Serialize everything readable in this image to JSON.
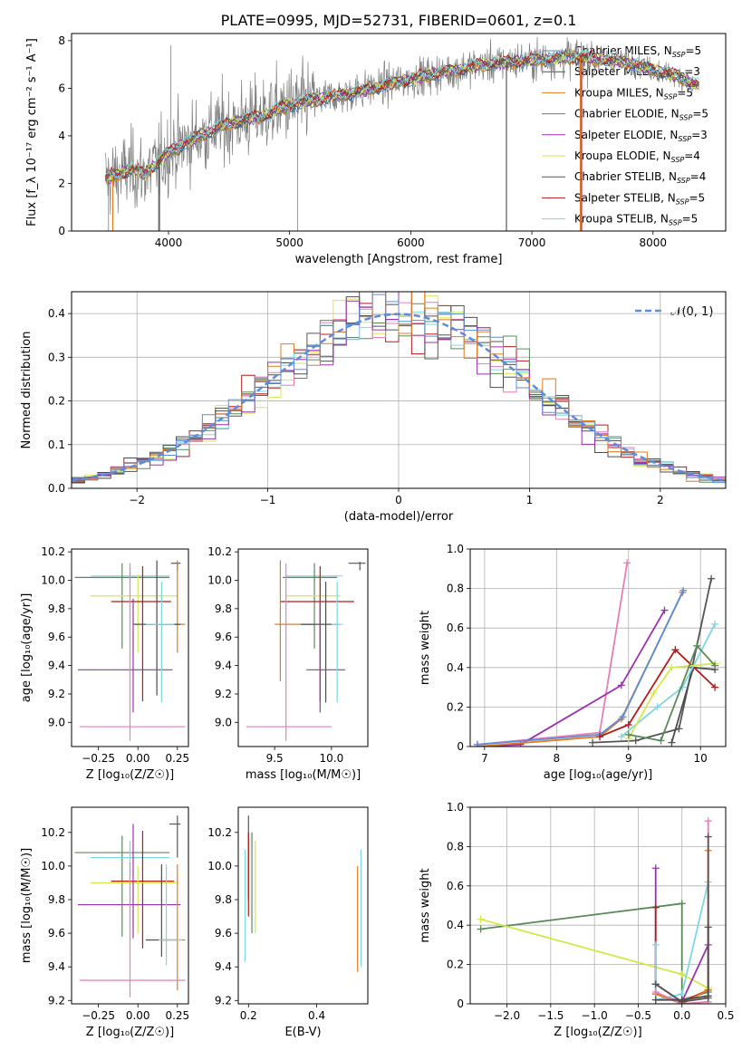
{
  "figure": {
    "title": "PLATE=0995, MJD=52731, FIBERID=0601, z=0.1"
  },
  "models": [
    {
      "name": "Chabrier MILES",
      "nssp": "5",
      "color": "#5b8dd9"
    },
    {
      "name": "Salpeter MILES",
      "nssp": "3",
      "color": "#4d4d4d"
    },
    {
      "name": "Kroupa MILES",
      "nssp": "5",
      "color": "#e07b20"
    },
    {
      "name": "Chabrier ELODIE",
      "nssp": "5",
      "color": "#5a8a5a"
    },
    {
      "name": "Salpeter ELODIE",
      "nssp": "3",
      "color": "#9b30b0"
    },
    {
      "name": "Kroupa ELODIE",
      "nssp": "4",
      "color": "#d4e84a"
    },
    {
      "name": "Chabrier STELIB",
      "nssp": "4",
      "color": "#555555"
    },
    {
      "name": "Salpeter STELIB",
      "nssp": "5",
      "color": "#b31b1b"
    },
    {
      "name": "Kroupa STELIB",
      "nssp": "5",
      "color": "#7fd6e0"
    }
  ],
  "extra_color": "#e67fb4",
  "chart_data": [
    {
      "id": "spectrum",
      "type": "line",
      "xlabel": "wavelength [Angstrom, rest frame]",
      "ylabel": "Flux [f_λ 10⁻¹⁷ erg cm⁻² s⁻¹ A⁻¹]",
      "xlim": [
        3200,
        8600
      ],
      "ylim": [
        0,
        8.3
      ],
      "xticks": [
        4000,
        5000,
        6000,
        7000,
        8000
      ],
      "yticks": [
        0,
        2,
        4,
        6,
        8
      ],
      "continuum": [
        [
          3480,
          2.2
        ],
        [
          3600,
          2.4
        ],
        [
          3700,
          2.6
        ],
        [
          3800,
          2.4
        ],
        [
          3900,
          2.8
        ],
        [
          4000,
          3.3
        ],
        [
          4100,
          3.6
        ],
        [
          4300,
          4.1
        ],
        [
          4500,
          4.5
        ],
        [
          4800,
          4.9
        ],
        [
          5000,
          5.3
        ],
        [
          5300,
          5.6
        ],
        [
          5600,
          5.9
        ],
        [
          6000,
          6.4
        ],
        [
          6300,
          6.7
        ],
        [
          6600,
          7.0
        ],
        [
          7000,
          7.2
        ],
        [
          7400,
          7.3
        ],
        [
          7800,
          7.1
        ],
        [
          8200,
          6.5
        ],
        [
          8380,
          6.1
        ]
      ],
      "data_sigma": 0.45,
      "spikes": [
        [
          3505,
          0
        ],
        [
          3930,
          0
        ],
        [
          5065,
          0
        ],
        [
          6790,
          0
        ],
        [
          7400,
          0
        ],
        [
          4020,
          7.8
        ]
      ]
    },
    {
      "id": "residuals",
      "type": "histogram",
      "xlabel": "(data-model)/error",
      "ylabel": "Normed distribution",
      "xlim": [
        -2.5,
        2.5
      ],
      "ylim": [
        0,
        0.45
      ],
      "xticks": [
        -2,
        -1,
        0,
        1,
        2
      ],
      "yticks": [
        0,
        0.1,
        0.2,
        0.3,
        0.4
      ],
      "bin_width": 0.1,
      "reference": {
        "name": "N(0,1)",
        "label": "𝒩(0, 1)",
        "color": "#5b8dd9"
      }
    },
    {
      "id": "age_vs_Z",
      "type": "scatter",
      "xlabel": "Z [log₁₀(Z/Z☉)]",
      "ylabel": "age  [log₁₀(age/yr)]",
      "xlim": [
        -0.42,
        0.32
      ],
      "ylim": [
        8.83,
        10.22
      ],
      "xticks": [
        -0.25,
        0.0,
        0.25
      ],
      "xticklabels": [
        "−0.25",
        "0.00",
        "0.25"
      ],
      "yticks": [
        9.0,
        9.2,
        9.4,
        9.6,
        9.8,
        10.0,
        10.2
      ],
      "points": [
        {
          "x": 0.25,
          "y": 10.12,
          "xerr": [
            0.04,
            0.02
          ],
          "yerr": [
            0.05,
            0.01
          ],
          "c": 6
        },
        {
          "x": -0.05,
          "y": 10.03,
          "xerr": [
            0.25,
            0.25
          ],
          "yerr": [
            0.05,
            0.05
          ],
          "c": 8
        },
        {
          "x": -0.1,
          "y": 10.02,
          "xerr": [
            0.3,
            0.3
          ],
          "yerr": [
            0.5,
            0.1
          ],
          "c": 3
        },
        {
          "x": 0.0,
          "y": 9.89,
          "xerr": [
            0.3,
            0.25
          ],
          "yerr": [
            0.4,
            0.15
          ],
          "c": 5
        },
        {
          "x": 0.03,
          "y": 9.85,
          "xerr": [
            0.2,
            0.18
          ],
          "yerr": [
            0.7,
            0.25
          ],
          "c": 7
        },
        {
          "x": 0.25,
          "y": 9.69,
          "xerr": [
            0.2,
            0.05
          ],
          "yerr": [
            0.2,
            0.45
          ],
          "c": 2
        },
        {
          "x": 0.12,
          "y": 9.69,
          "xerr": [
            0.15,
            0.15
          ],
          "yerr": [
            0.5,
            0.45
          ],
          "c": 1
        },
        {
          "x": -0.03,
          "y": 9.37,
          "xerr": [
            0.35,
            0.25
          ],
          "yerr": [
            0.3,
            0.5
          ],
          "c": 4
        },
        {
          "x": 0.15,
          "y": 9.69,
          "xerr": [
            0.1,
            0.08
          ],
          "yerr": [
            0.55,
            0.3
          ],
          "c": 8
        },
        {
          "x": -0.05,
          "y": 8.97,
          "xerr": [
            0.32,
            0.35
          ],
          "yerr": [
            0.1,
            1.15
          ],
          "c": 9
        }
      ]
    },
    {
      "id": "age_vs_mass",
      "type": "scatter",
      "xlabel": "mass [log₁₀(M/M☉)]",
      "ylabel": "",
      "xlim": [
        9.18,
        10.32
      ],
      "ylim": [
        8.83,
        10.22
      ],
      "xticks": [
        9.5,
        10.0
      ],
      "xticklabels": [
        "9.5",
        "10.0"
      ],
      "yticks": [
        9.0,
        9.2,
        9.4,
        9.6,
        9.8,
        10.0,
        10.2
      ],
      "points": [
        {
          "x": 10.25,
          "y": 10.12,
          "xerr": [
            0.1,
            0.05
          ],
          "yerr": [
            0.05,
            0.01
          ],
          "c": 6
        },
        {
          "x": 9.85,
          "y": 10.03,
          "xerr": [
            0.25,
            0.25
          ],
          "yerr": [
            0.05,
            0.05
          ],
          "c": 8
        },
        {
          "x": 9.85,
          "y": 10.02,
          "xerr": [
            0.28,
            0.2
          ],
          "yerr": [
            0.5,
            0.1
          ],
          "c": 3
        },
        {
          "x": 9.9,
          "y": 9.89,
          "xerr": [
            0.3,
            0.18
          ],
          "yerr": [
            0.4,
            0.15
          ],
          "c": 5
        },
        {
          "x": 9.9,
          "y": 9.85,
          "xerr": [
            0.35,
            0.3
          ],
          "yerr": [
            0.7,
            0.25
          ],
          "c": 7
        },
        {
          "x": 9.55,
          "y": 9.69,
          "xerr": [
            0.05,
            0.3
          ],
          "yerr": [
            0.4,
            0.45
          ],
          "c": 2
        },
        {
          "x": 9.95,
          "y": 9.69,
          "xerr": [
            0.22,
            0.12
          ],
          "yerr": [
            0.55,
            0.3
          ],
          "c": 1
        },
        {
          "x": 9.9,
          "y": 9.37,
          "xerr": [
            0.12,
            0.22
          ],
          "yerr": [
            0.3,
            0.5
          ],
          "c": 4
        },
        {
          "x": 10.05,
          "y": 9.69,
          "xerr": [
            0.05,
            0.05
          ],
          "yerr": [
            0.55,
            0.3
          ],
          "c": 8
        },
        {
          "x": 9.6,
          "y": 8.97,
          "xerr": [
            0.35,
            0.4
          ],
          "yerr": [
            0.1,
            1.15
          ],
          "c": 9
        }
      ]
    },
    {
      "id": "weight_vs_age",
      "type": "line",
      "xlabel": "age  [log₁₀(age/yr)]",
      "ylabel": "mass weight",
      "xlim": [
        6.8,
        10.35
      ],
      "ylim": [
        0,
        1.0
      ],
      "xticks": [
        7,
        8,
        9,
        10
      ],
      "yticks": [
        0.0,
        0.2,
        0.4,
        0.6,
        0.8,
        1.0
      ],
      "series": [
        {
          "c": 9,
          "x": [
            6.9,
            8.6,
            8.98
          ],
          "y": [
            0.01,
            0.07,
            0.93
          ]
        },
        {
          "c": 4,
          "x": [
            6.9,
            7.5,
            8.9,
            9.5
          ],
          "y": [
            0.0,
            0.01,
            0.31,
            0.69
          ]
        },
        {
          "c": 2,
          "x": [
            6.9,
            8.6,
            8.9,
            9.75
          ],
          "y": [
            0.0,
            0.05,
            0.14,
            0.78
          ]
        },
        {
          "c": 0,
          "x": [
            6.9,
            8.6,
            8.92,
            9.76
          ],
          "y": [
            0.01,
            0.06,
            0.15,
            0.79
          ]
        },
        {
          "c": 6,
          "x": [
            8.5,
            9.1,
            9.7,
            10.15
          ],
          "y": [
            0.02,
            0.03,
            0.09,
            0.85
          ]
        },
        {
          "c": 1,
          "x": [
            9.6,
            9.9,
            10.2
          ],
          "y": [
            0.02,
            0.4,
            0.39
          ]
        },
        {
          "c": 7,
          "x": [
            8.6,
            9.0,
            9.65,
            10.2
          ],
          "y": [
            0.05,
            0.11,
            0.49,
            0.3
          ]
        },
        {
          "c": 8,
          "x": [
            8.9,
            9.4,
            9.75,
            10.2
          ],
          "y": [
            0.05,
            0.2,
            0.3,
            0.62
          ]
        },
        {
          "c": 5,
          "x": [
            9.0,
            9.35,
            9.6,
            10.2
          ],
          "y": [
            0.04,
            0.27,
            0.4,
            0.42
          ]
        },
        {
          "c": 3,
          "x": [
            9.0,
            9.45,
            9.95,
            10.2
          ],
          "y": [
            0.06,
            0.03,
            0.51,
            0.41
          ]
        }
      ]
    },
    {
      "id": "mass_vs_Z",
      "type": "scatter",
      "xlabel": "Z [log₁₀(Z/Z☉)]",
      "ylabel": "mass [log₁₀(M/M☉)]",
      "xlim": [
        -0.42,
        0.32
      ],
      "ylim": [
        9.18,
        10.35
      ],
      "xticks": [
        -0.25,
        0.0,
        0.25
      ],
      "xticklabels": [
        "−0.25",
        "0.00",
        "0.25"
      ],
      "yticks": [
        9.2,
        9.4,
        9.6,
        9.8,
        10.0,
        10.2
      ],
      "points": [
        {
          "x": 0.25,
          "y": 10.25,
          "xerr": [
            0.05,
            0.02
          ],
          "yerr": [
            0.2,
            0.05
          ],
          "c": 6
        },
        {
          "x": -0.1,
          "y": 10.08,
          "xerr": [
            0.3,
            0.3
          ],
          "yerr": [
            0.5,
            0.1
          ],
          "c": 3
        },
        {
          "x": -0.05,
          "y": 10.05,
          "xerr": [
            0.25,
            0.25
          ],
          "yerr": [
            0.1,
            0.1
          ],
          "c": 8
        },
        {
          "x": 0.03,
          "y": 9.91,
          "xerr": [
            0.2,
            0.2
          ],
          "yerr": [
            0.4,
            0.3
          ],
          "c": 7
        },
        {
          "x": 0.0,
          "y": 9.9,
          "xerr": [
            0.3,
            0.25
          ],
          "yerr": [
            0.3,
            0.1
          ],
          "c": 5
        },
        {
          "x": -0.03,
          "y": 9.77,
          "xerr": [
            0.35,
            0.3
          ],
          "yerr": [
            0.2,
            0.48
          ],
          "c": 4
        },
        {
          "x": 0.25,
          "y": 9.56,
          "xerr": [
            0.12,
            0.05
          ],
          "yerr": [
            0.3,
            0.45
          ],
          "c": 2
        },
        {
          "x": 0.15,
          "y": 9.56,
          "xerr": [
            0.1,
            0.1
          ],
          "yerr": [
            0.1,
            0.45
          ],
          "c": 1
        },
        {
          "x": 0.18,
          "y": 9.56,
          "xerr": [
            0.05,
            0.1
          ],
          "yerr": [
            0.15,
            0.45
          ],
          "c": 8
        },
        {
          "x": -0.05,
          "y": 9.32,
          "xerr": [
            0.32,
            0.35
          ],
          "yerr": [
            0.1,
            0.7
          ],
          "c": 9
        }
      ]
    },
    {
      "id": "mass_vs_ebv",
      "type": "scatter",
      "xlabel": "E(B-V)",
      "ylabel": "",
      "xlim": [
        0.17,
        0.55
      ],
      "ylim": [
        9.18,
        10.35
      ],
      "xticks": [
        0.2,
        0.4
      ],
      "xticklabels": [
        "0.2",
        "0.4"
      ],
      "yticks": [
        9.2,
        9.4,
        9.6,
        9.8,
        10.0,
        10.2
      ],
      "points": [
        {
          "x": 0.2,
          "y": 10.2,
          "xerr": [
            0,
            0
          ],
          "yerr": [
            0.4,
            0.1
          ],
          "c": 6
        },
        {
          "x": 0.21,
          "y": 10.05,
          "xerr": [
            0,
            0
          ],
          "yerr": [
            0.45,
            0.15
          ],
          "c": 3
        },
        {
          "x": 0.22,
          "y": 9.9,
          "xerr": [
            0,
            0
          ],
          "yerr": [
            0.3,
            0.25
          ],
          "c": 5
        },
        {
          "x": 0.19,
          "y": 9.9,
          "xerr": [
            0,
            0
          ],
          "yerr": [
            0.47,
            0.2
          ],
          "c": 8
        },
        {
          "x": 0.2,
          "y": 9.9,
          "xerr": [
            0,
            0
          ],
          "yerr": [
            0.2,
            0.3
          ],
          "c": 7
        },
        {
          "x": 0.52,
          "y": 9.7,
          "xerr": [
            0,
            0
          ],
          "yerr": [
            0.33,
            0.3
          ],
          "c": 2
        },
        {
          "x": 0.53,
          "y": 9.7,
          "xerr": [
            0,
            0
          ],
          "yerr": [
            0.3,
            0.4
          ],
          "c": 8
        }
      ]
    },
    {
      "id": "weight_vs_Z",
      "type": "line",
      "xlabel": "Z [log₁₀(Z/Z☉)]",
      "ylabel": "mass weight",
      "xlim": [
        -2.42,
        0.5
      ],
      "ylim": [
        0,
        1.0
      ],
      "xticks": [
        -2.0,
        -1.5,
        -1.0,
        -0.5,
        0.0,
        0.5
      ],
      "xticklabels": [
        "−2.0",
        "−1.5",
        "−1.0",
        "−0.5",
        "0.0",
        "0.5"
      ],
      "yticks": [
        0.0,
        0.2,
        0.4,
        0.6,
        0.8,
        1.0
      ],
      "series": [
        {
          "c": 3,
          "x": [
            -2.3,
            0.0,
            0.0,
            0.3
          ],
          "y": [
            0.38,
            0.51,
            0.02,
            0.06
          ]
        },
        {
          "c": 5,
          "x": [
            -2.3,
            0.0,
            0.3
          ],
          "y": [
            0.43,
            0.15,
            0.08
          ]
        },
        {
          "c": 4,
          "x": [
            -0.3,
            -0.3,
            0.0,
            0.3
          ],
          "y": [
            0.69,
            0.05,
            0.01,
            0.3
          ]
        },
        {
          "c": 7,
          "x": [
            -0.3,
            -0.3,
            0.0,
            0.3
          ],
          "y": [
            0.49,
            0.1,
            0.01,
            0.07
          ]
        },
        {
          "c": 8,
          "x": [
            -0.3,
            -0.3,
            0.0,
            0.3,
            0.3
          ],
          "y": [
            0.3,
            0.02,
            0.05,
            0.62,
            0.0
          ]
        },
        {
          "c": 2,
          "x": [
            -0.3,
            0.0,
            0.3,
            0.3
          ],
          "y": [
            0.05,
            0.0,
            0.07,
            0.78
          ]
        },
        {
          "c": 9,
          "x": [
            -0.3,
            0.0,
            0.3,
            0.3
          ],
          "y": [
            0.06,
            0.0,
            0.01,
            0.93
          ]
        },
        {
          "c": 6,
          "x": [
            -0.3,
            0.0,
            0.3,
            0.3
          ],
          "y": [
            0.1,
            0.01,
            0.03,
            0.85
          ]
        },
        {
          "c": 1,
          "x": [
            -0.3,
            0.0,
            0.3,
            0.3
          ],
          "y": [
            0.02,
            0.02,
            0.04,
            0.39
          ]
        }
      ]
    }
  ]
}
